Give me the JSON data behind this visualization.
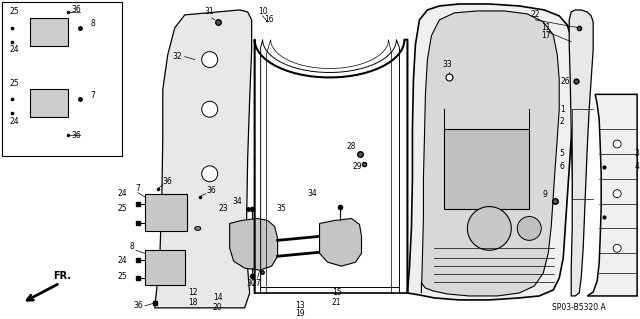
{
  "bg_color": "#ffffff",
  "fig_width": 6.4,
  "fig_height": 3.19,
  "diagram_code": "SP03-B5320 A"
}
